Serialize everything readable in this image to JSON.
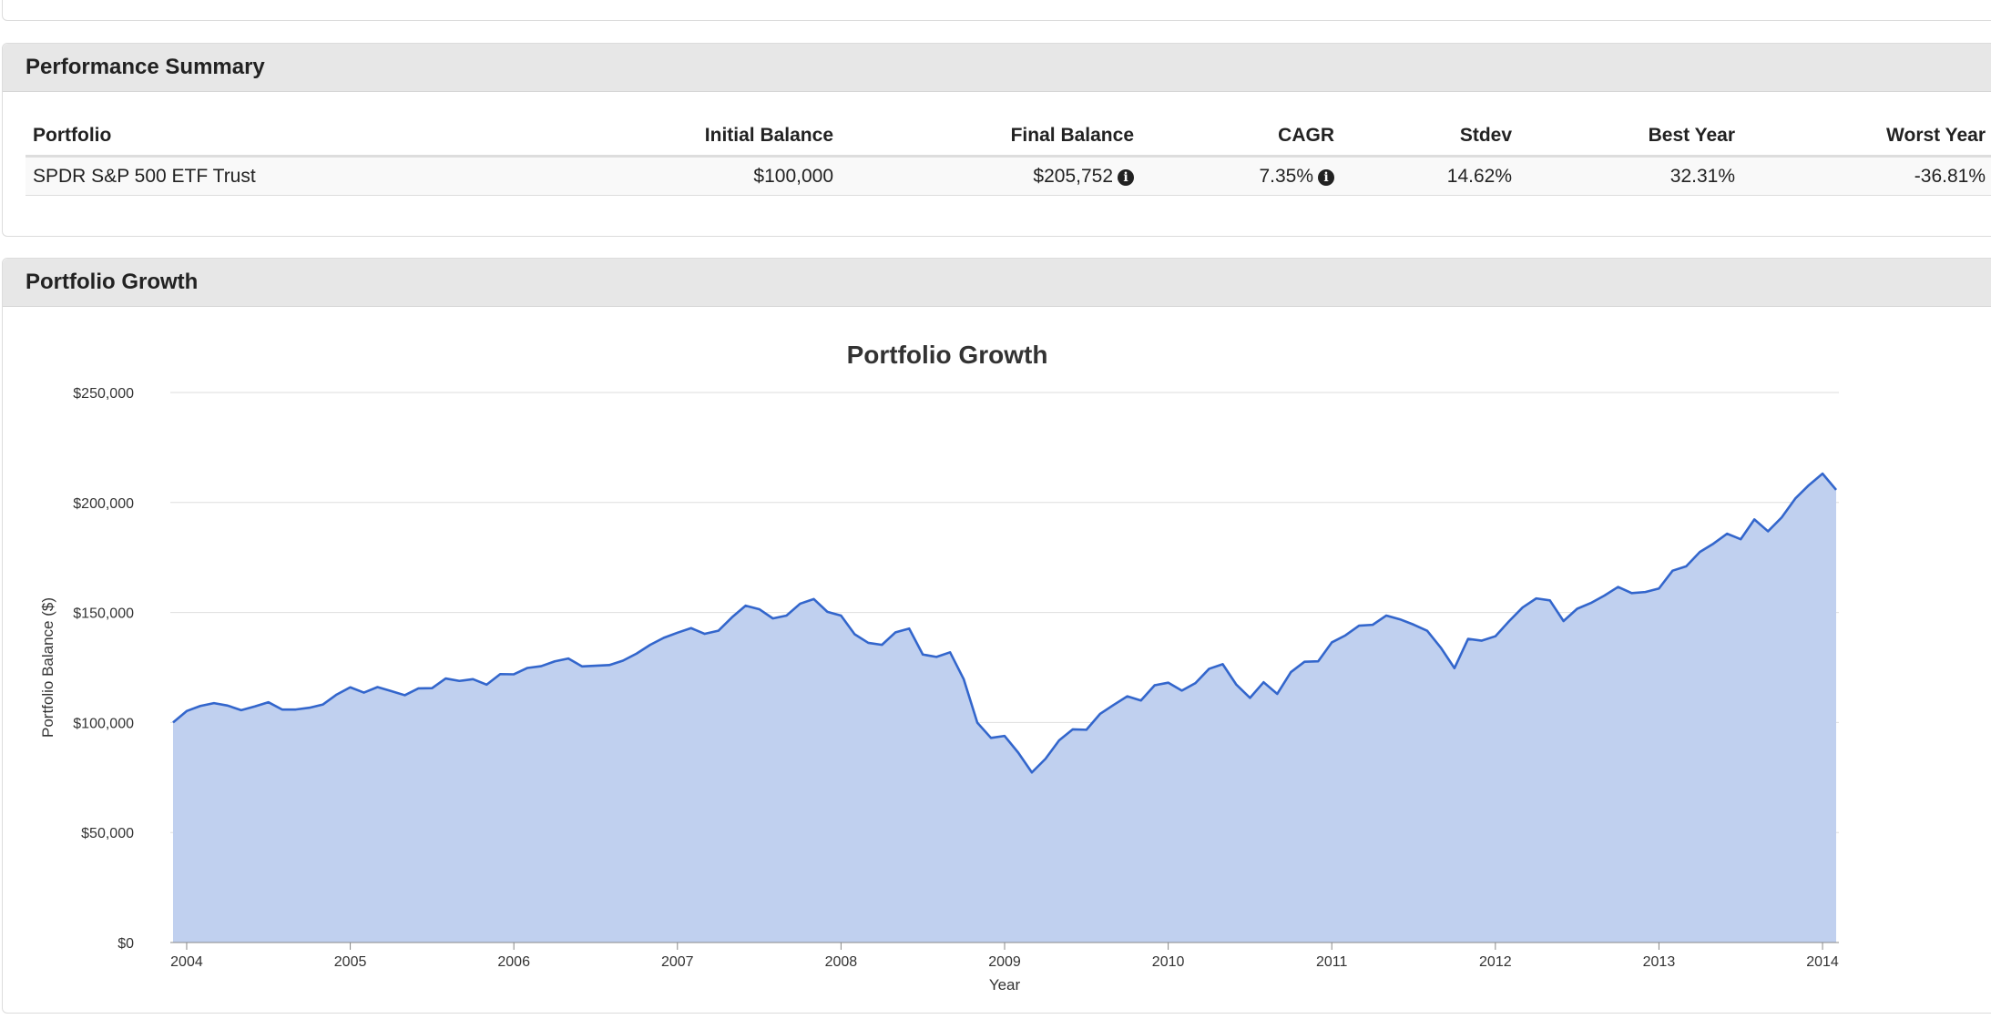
{
  "summary": {
    "title": "Performance Summary",
    "headers": [
      "Portfolio",
      "Initial Balance",
      "Final Balance",
      "CAGR",
      "Stdev",
      "Best Year",
      "Worst Year"
    ],
    "row": {
      "portfolio": "SPDR S&P 500 ETF Trust",
      "initial_balance": "$100,000",
      "final_balance": "$205,752",
      "cagr": "7.35%",
      "stdev": "14.62%",
      "best_year": "32.31%",
      "worst_year": "-36.81%"
    },
    "info_icon": "info-circle-icon"
  },
  "growth": {
    "panel_title": "Portfolio Growth"
  },
  "colors": {
    "line": "#3366cc",
    "area": "#c0d0ef",
    "header_bg": "#e7e7e7"
  },
  "chart_data": {
    "type": "area",
    "title": "Portfolio Growth",
    "xlabel": "Year",
    "ylabel": "Portfolio Balance ($)",
    "ylim": [
      0,
      250000
    ],
    "xlim": [
      2003.9,
      2014.1
    ],
    "x_ticks": [
      "2004",
      "2005",
      "2006",
      "2007",
      "2008",
      "2009",
      "2010",
      "2011",
      "2012",
      "2013",
      "2014"
    ],
    "y_ticks": [
      "$0",
      "$50,000",
      "$100,000",
      "$150,000",
      "$200,000",
      "$250,000"
    ],
    "grid": true,
    "legend": "none",
    "x_start": "2003-12",
    "x_step": "monthly",
    "series": [
      {
        "values": [
          100000,
          105200,
          107500,
          108800,
          107700,
          105600,
          107300,
          109200,
          105900,
          105900,
          106700,
          108200,
          112700,
          116000,
          113600,
          116100,
          114300,
          112400,
          115500,
          115600,
          120000,
          118900,
          119700,
          117200,
          122000,
          121900,
          124800,
          125600,
          127800,
          129100,
          125500,
          125800,
          126100,
          128100,
          131300,
          135300,
          138500,
          140800,
          142900,
          140300,
          141700,
          147800,
          153100,
          151500,
          147300,
          148600,
          154000,
          156100,
          150300,
          148600,
          140100,
          136200,
          135300,
          141000,
          142700,
          130900,
          129800,
          131900,
          119700,
          99900,
          93000,
          93900,
          86300,
          77300,
          83500,
          91900,
          96900,
          96700,
          103900,
          108000,
          111900,
          110000,
          116900,
          118100,
          114500,
          117900,
          124400,
          126500,
          117200,
          111200,
          118300,
          113000,
          122900,
          127600,
          127800,
          136400,
          139600,
          144000,
          144400,
          148600,
          146900,
          144500,
          141700,
          134000,
          124700,
          138000,
          137200,
          139200,
          146000,
          152300,
          156400,
          155500,
          146100,
          151700,
          154300,
          157700,
          161600,
          158800,
          159300,
          160900,
          169000,
          171000,
          177500,
          181300,
          185800,
          183300,
          192300,
          186900,
          193200,
          201800,
          207900,
          213100,
          205752
        ]
      }
    ]
  }
}
